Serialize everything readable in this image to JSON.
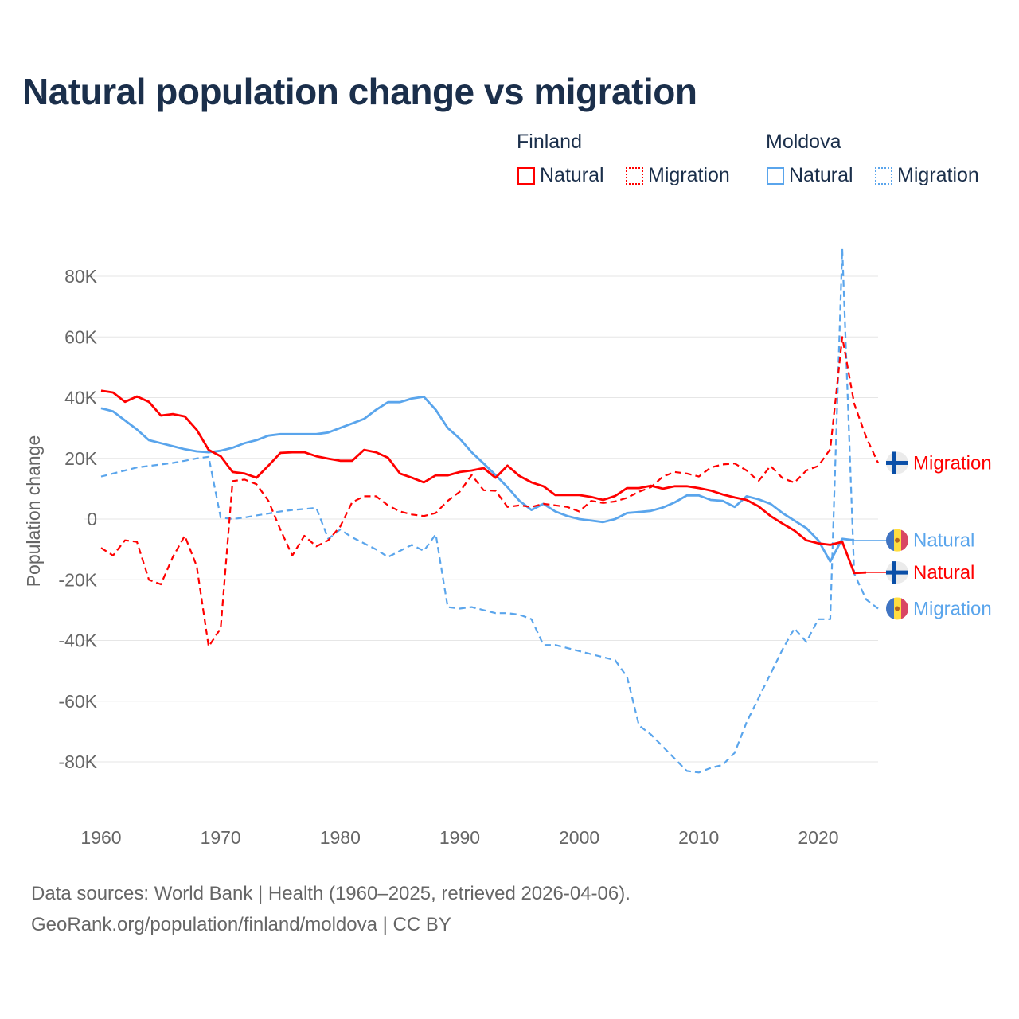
{
  "title": "Natural population change vs migration",
  "legend": {
    "groups": [
      {
        "name": "Finland",
        "items": [
          "Natural",
          "Migration"
        ]
      },
      {
        "name": "Moldova",
        "items": [
          "Natural",
          "Migration"
        ]
      }
    ]
  },
  "footer": {
    "line1": "Data sources: World Bank | Health (1960–2025, retrieved 2026-04-06).",
    "line2": "GeoRank.org/population/finland/moldova | CC BY"
  },
  "colors": {
    "finland": "#ff0000",
    "moldova": "#5aa5ec",
    "grid": "#e6e6e6",
    "axis_text": "#666666"
  },
  "chart_data": {
    "type": "line",
    "title": "Natural population change vs migration",
    "xlabel": "",
    "ylabel": "Population change",
    "xlim": [
      1960,
      2025
    ],
    "ylim": [
      -100000,
      100000
    ],
    "x_ticks": [
      1960,
      1970,
      1980,
      1990,
      2000,
      2010,
      2020
    ],
    "x_tick_labels": [
      "1960",
      "1970",
      "1980",
      "1990",
      "2000",
      "2010",
      "2020"
    ],
    "y_ticks": [
      80000,
      60000,
      40000,
      20000,
      0,
      -20000,
      -40000,
      -60000,
      -80000
    ],
    "y_tick_labels": [
      "80K",
      "60K",
      "40K",
      "20K",
      "0",
      "-20K",
      "-40K",
      "-60K",
      "-80K"
    ],
    "grid": true,
    "legend_position": "top-right",
    "x_start": 1960,
    "series": [
      {
        "name": "Finland Natural",
        "label": "Natural",
        "country": "finland",
        "dash": false,
        "unit": "thousands",
        "values": [
          42.3,
          41.7,
          38.6,
          40.4,
          38.6,
          34.1,
          34.6,
          33.8,
          29.4,
          22.8,
          20.7,
          15.5,
          15.0,
          13.6,
          17.6,
          21.8,
          22,
          22,
          20.7,
          19.9,
          19.2,
          19.2,
          22.8,
          22,
          20.2,
          15,
          13.6,
          12.1,
          14.4,
          14.4,
          15.5,
          16,
          16.8,
          13.6,
          17.6,
          14.2,
          12.1,
          10.8,
          7.9,
          7.9,
          7.9,
          7.3,
          6.3,
          7.6,
          10.2,
          10.2,
          11,
          10,
          10.8,
          10.8,
          10.2,
          9.4,
          8.1,
          7.1,
          6.3,
          4.2,
          1,
          -1.5,
          -3.8,
          -7,
          -8,
          -8.5,
          -7.5,
          -17.8,
          -17.6
        ]
      },
      {
        "name": "Finland Migration",
        "label": "Migration",
        "country": "finland",
        "dash": true,
        "unit": "thousands",
        "values": [
          -9.5,
          -12,
          -7,
          -7.5,
          -20,
          -21.5,
          -12.5,
          -5.5,
          -15.5,
          -42,
          -36,
          12.5,
          13,
          11.5,
          6,
          -3.5,
          -12,
          -5.5,
          -9,
          -7,
          -2.5,
          5.5,
          7.5,
          7.5,
          4.5,
          2.5,
          1.5,
          1,
          2,
          6,
          9,
          14.5,
          9.5,
          9.3,
          4,
          4.5,
          4,
          5,
          4.5,
          4,
          2.5,
          6,
          5.3,
          5.8,
          7,
          9,
          10.5,
          14,
          15.5,
          15,
          14,
          17,
          18,
          18.3,
          16,
          12.5,
          17.5,
          13.5,
          12,
          16,
          17.5,
          23,
          60,
          38,
          27,
          18.5
        ]
      },
      {
        "name": "Moldova Natural",
        "label": "Natural",
        "country": "moldova",
        "dash": false,
        "unit": "thousands",
        "values": [
          36.5,
          35.5,
          32.5,
          29.5,
          26,
          25,
          24,
          23,
          22.3,
          22,
          22.5,
          23.5,
          25,
          26,
          27.5,
          28,
          28,
          28,
          28,
          28.5,
          30,
          31.5,
          33,
          36,
          38.5,
          38.5,
          39.7,
          40.3,
          36,
          30,
          26.5,
          22,
          18.3,
          14.5,
          10.5,
          6,
          3,
          5,
          2.5,
          1,
          0,
          -0.5,
          -1,
          0,
          2,
          2.3,
          2.7,
          3.8,
          5.5,
          7.8,
          7.8,
          6.3,
          6,
          4,
          7.5,
          6.5,
          5,
          2,
          -0.5,
          -3,
          -7,
          -14,
          -6.5,
          -7
        ]
      },
      {
        "name": "Moldova Migration",
        "label": "Migration",
        "country": "moldova",
        "dash": true,
        "unit": "thousands",
        "values": [
          14,
          15,
          16,
          17,
          17.5,
          18,
          18.5,
          19.2,
          20,
          20.5,
          0.5,
          0,
          0.5,
          1.2,
          1.8,
          2.5,
          3,
          3.3,
          3.7,
          -6.5,
          -3.5,
          -6,
          -8,
          -10,
          -12.5,
          -10.5,
          -8.5,
          -10.5,
          -5,
          -29,
          -29.5,
          -29,
          -30,
          -31,
          -31,
          -31.5,
          -33,
          -41.5,
          -41.5,
          -42.5,
          -43.5,
          -44.5,
          -45.5,
          -46.5,
          -52,
          -68,
          -71,
          -75,
          -79,
          -83,
          -83.5,
          -82,
          -81,
          -77,
          -67,
          -59,
          -51,
          -43,
          -36,
          -40.5,
          -33,
          -33,
          89,
          -18,
          -26.5,
          -29.5
        ]
      }
    ],
    "end_labels": [
      {
        "text": "Migration",
        "country": "finland",
        "value": 18.5
      },
      {
        "text": "Natural",
        "country": "moldova",
        "value": -7
      },
      {
        "text": "Natural",
        "country": "finland",
        "value": -17.6
      },
      {
        "text": "Migration",
        "country": "moldova",
        "value": -29.5
      }
    ]
  }
}
